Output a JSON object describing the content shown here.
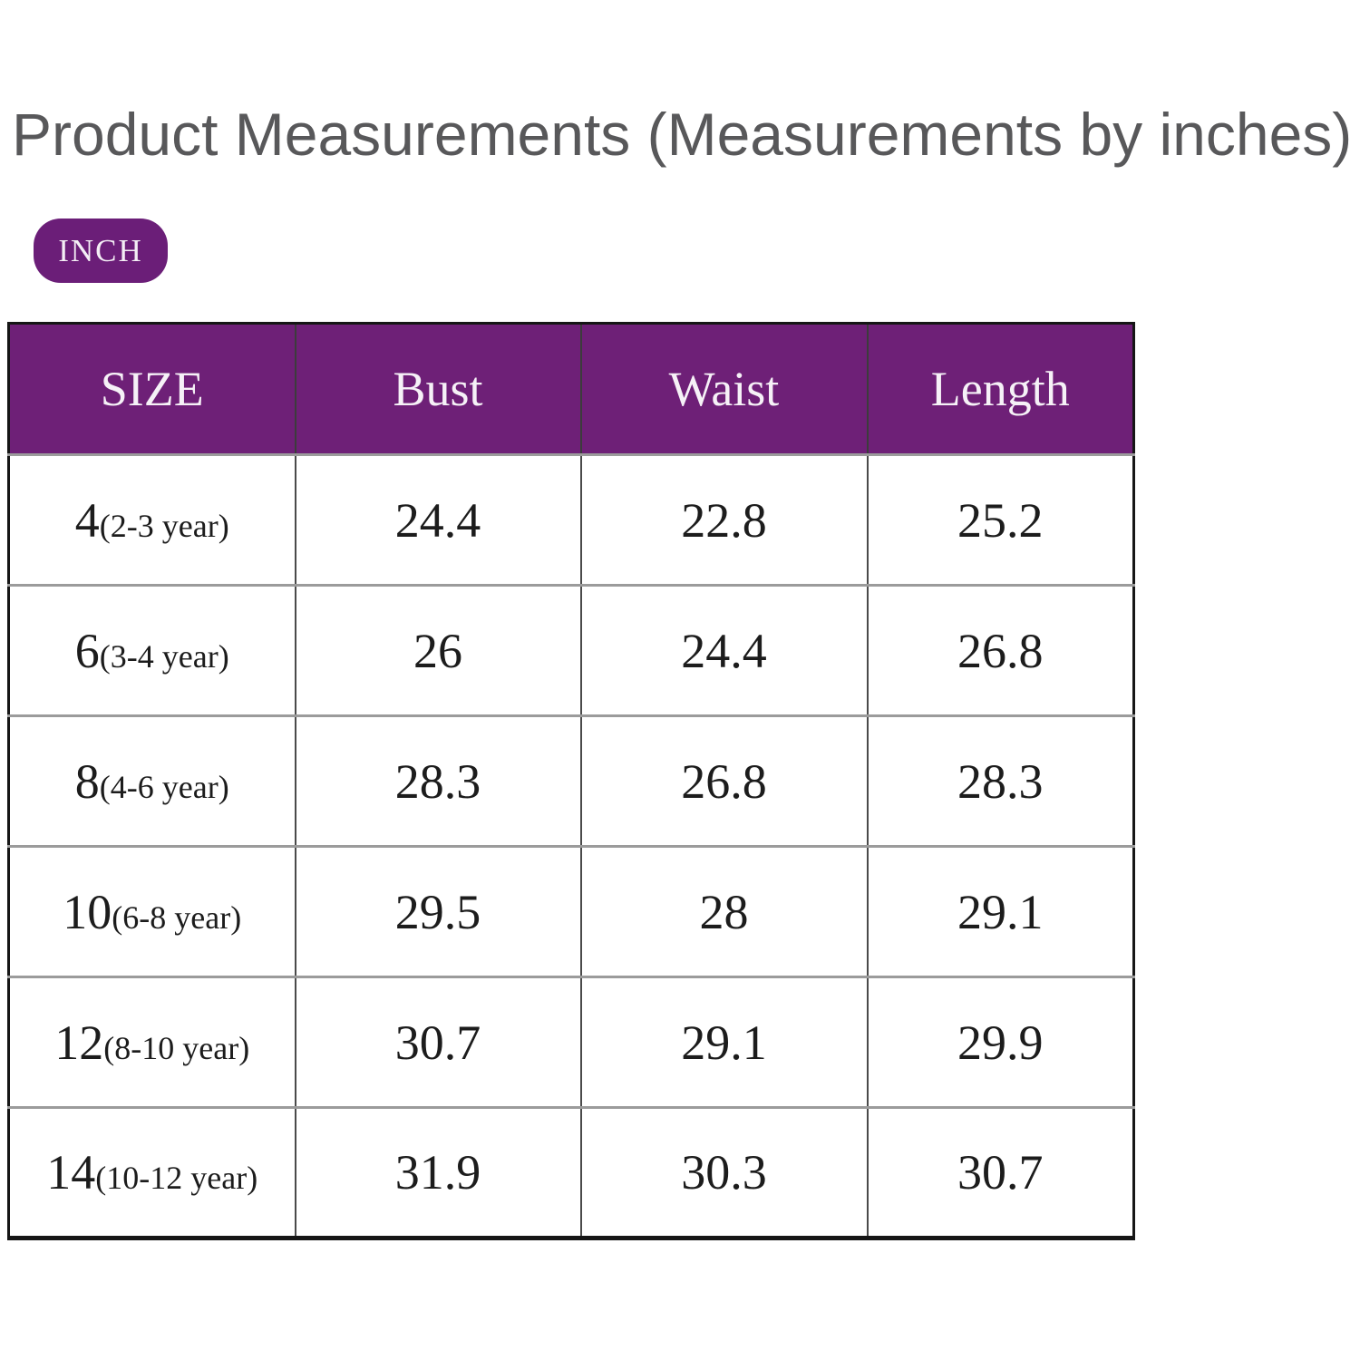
{
  "title": "Product Measurements (Measurements by inches)",
  "unit_badge": "INCH",
  "colors": {
    "accent_purple": "#6e2077",
    "badge_purple": "#6b1e78",
    "title_gray": "#58585a",
    "row_divider_gray": "#9b9b9b",
    "table_border_black": "#161616"
  },
  "chart_data": {
    "type": "table",
    "title": "Product Measurements (Measurements by inches)",
    "unit": "INCH",
    "columns": [
      "SIZE",
      "Bust",
      "Waist",
      "Length"
    ],
    "rows": [
      {
        "size": "4",
        "age": "(2-3 year)",
        "bust": "24.4",
        "waist": "22.8",
        "length": "25.2"
      },
      {
        "size": "6",
        "age": "(3-4 year)",
        "bust": "26",
        "waist": "24.4",
        "length": "26.8"
      },
      {
        "size": "8",
        "age": "(4-6 year)",
        "bust": "28.3",
        "waist": "26.8",
        "length": "28.3"
      },
      {
        "size": "10",
        "age": "(6-8 year)",
        "bust": "29.5",
        "waist": "28",
        "length": "29.1"
      },
      {
        "size": "12",
        "age": "(8-10 year)",
        "bust": "30.7",
        "waist": "29.1",
        "length": "29.9"
      },
      {
        "size": "14",
        "age": "(10-12 year)",
        "bust": "31.9",
        "waist": "30.3",
        "length": "30.7"
      }
    ]
  }
}
